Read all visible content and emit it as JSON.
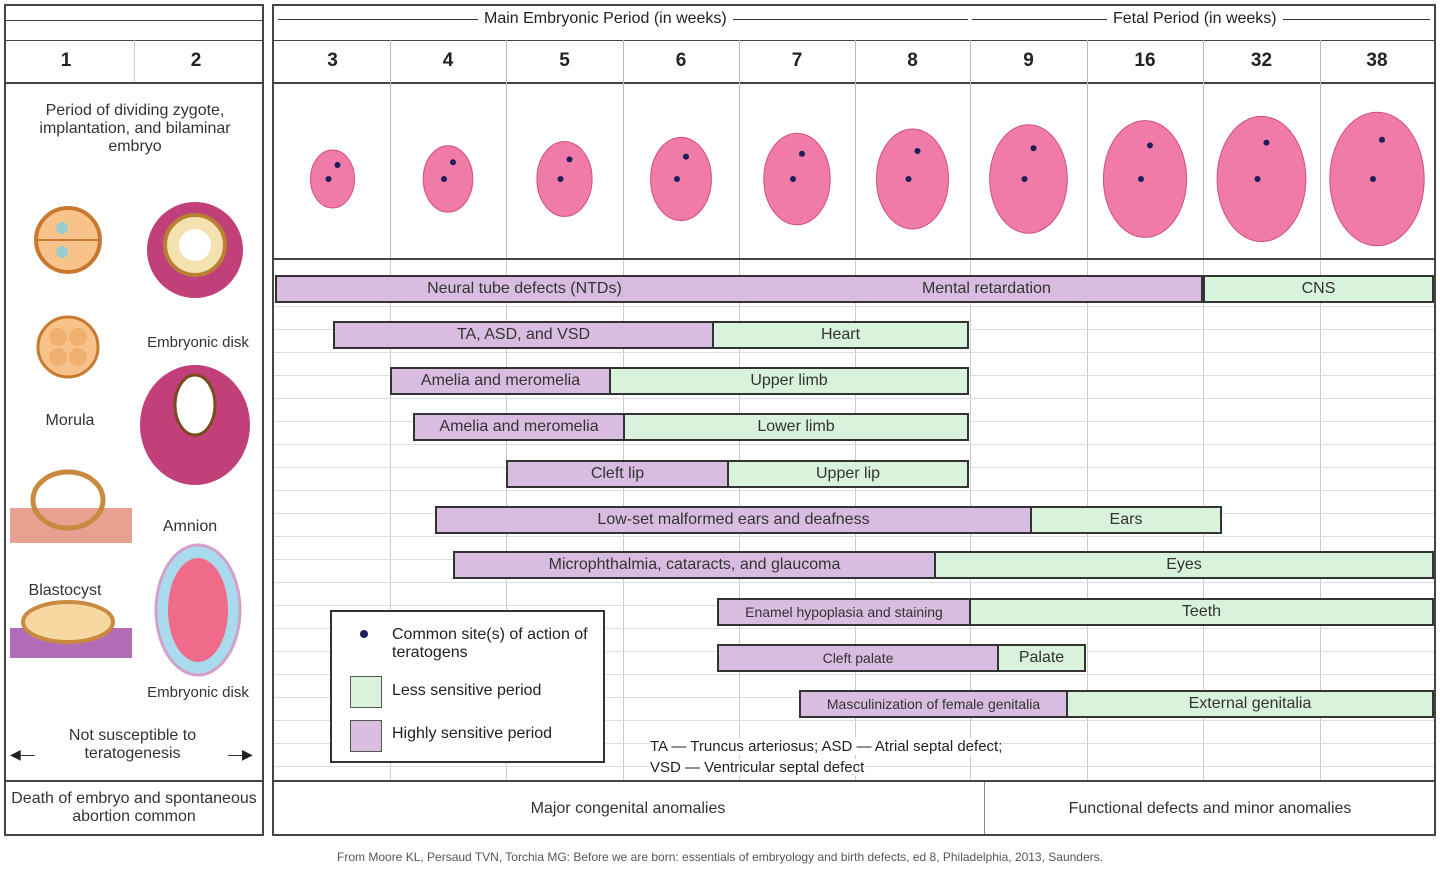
{
  "header": {
    "embryonic_period": "Main Embryonic Period (in weeks)",
    "fetal_period": "Fetal Period (in weeks)"
  },
  "weeks_left": [
    "1",
    "2"
  ],
  "weeks": [
    "3",
    "4",
    "5",
    "6",
    "7",
    "8",
    "9",
    "16",
    "32",
    "38"
  ],
  "left_panel": {
    "period_text": "Period of dividing zygote, implantation, and bilaminar embryo",
    "embryonic_disk_1": "Embryonic disk",
    "morula": "Morula",
    "amnion": "Amnion",
    "blastocyst": "Blastocyst",
    "embryonic_disk_2": "Embryonic disk",
    "not_susceptible": "Not susceptible to teratogenesis",
    "death": "Death of embryo and spontaneous abortion common"
  },
  "bars": [
    {
      "high": "Neural tube defects (NTDs)",
      "high2": "Mental retardation",
      "low": "CNS"
    },
    {
      "high": "TA, ASD, and VSD",
      "low": "Heart"
    },
    {
      "high": "Amelia and meromelia",
      "low": "Upper limb"
    },
    {
      "high": "Amelia and meromelia",
      "low": "Lower limb"
    },
    {
      "high": "Cleft lip",
      "low": "Upper lip"
    },
    {
      "high": "Low-set malformed ears and deafness",
      "low": "Ears"
    },
    {
      "high": "Microphthalmia, cataracts, and glaucoma",
      "low": "Eyes"
    },
    {
      "high": "Enamel hypoplasia and staining",
      "low": "Teeth"
    },
    {
      "high": "Cleft palate",
      "low": "Palate"
    },
    {
      "high": "Masculinization of female genitalia",
      "low": "External genitalia"
    }
  ],
  "legend": {
    "sites": "Common site(s) of action of teratogens",
    "less": "Less sensitive period",
    "high": "Highly sensitive period"
  },
  "abbrev": {
    "line1": "TA — Truncus arteriosus; ASD — Atrial septal defect;",
    "line2": "VSD — Ventricular septal defect"
  },
  "bottom": {
    "major": "Major congenital anomalies",
    "functional": "Functional defects and minor anomalies"
  },
  "citation": "From Moore KL, Persaud TVN, Torchia MG: Before we are born: essentials of embryology and birth defects, ed 8, Philadelphia, 2013, Saunders.",
  "colors": {
    "highly_sensitive": "#d9bde0",
    "less_sensitive": "#d9f2dc",
    "embryo": "#f07aa8"
  }
}
